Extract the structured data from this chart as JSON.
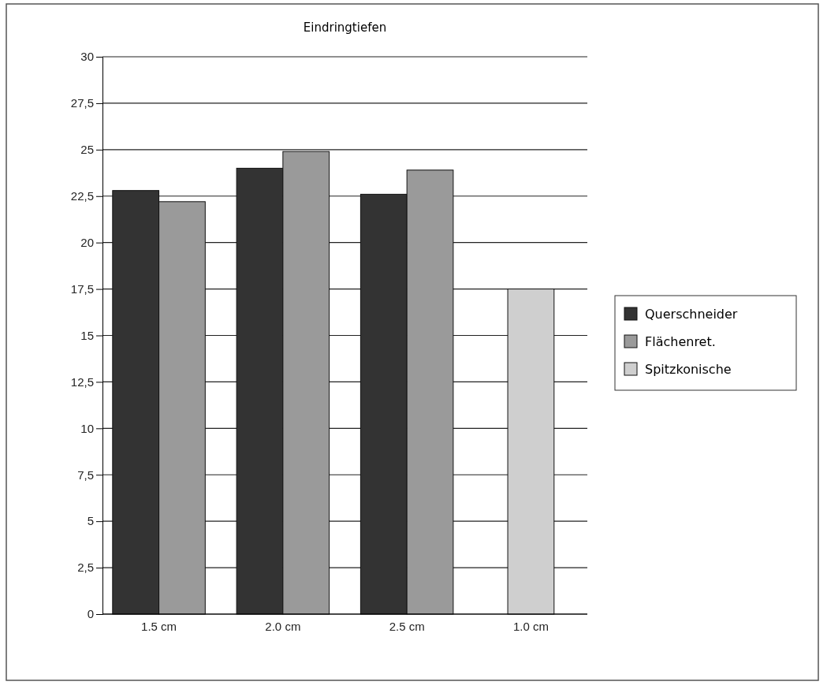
{
  "chart_data": {
    "type": "bar",
    "title": "Eindringtiefen",
    "categories": [
      "1.5 cm",
      "2.0 cm",
      "2.5 cm",
      "1.0 cm"
    ],
    "series": [
      {
        "name": "Querschneider",
        "color": "#333333",
        "values": [
          22.8,
          24.0,
          22.6,
          null
        ]
      },
      {
        "name": "Flächenret.",
        "color": "#9a9a9a",
        "values": [
          22.2,
          24.9,
          23.9,
          null
        ]
      },
      {
        "name": "Spitzkonische",
        "color": "#cfcfcf",
        "values": [
          null,
          null,
          null,
          17.5
        ]
      }
    ],
    "ylim": [
      0,
      30
    ],
    "yticks": [
      0,
      {
        "value": 2.5,
        "label": "2,5"
      },
      5,
      {
        "value": 7.5,
        "label": "7,5"
      },
      10,
      {
        "value": 12.5,
        "label": "12,5"
      },
      15,
      {
        "value": 17.5,
        "label": "17,5"
      },
      20,
      {
        "value": 22.5,
        "label": "22,5"
      },
      25,
      {
        "value": 27.5,
        "label": "27,5"
      },
      30
    ],
    "grid": "y",
    "legend": "right"
  }
}
